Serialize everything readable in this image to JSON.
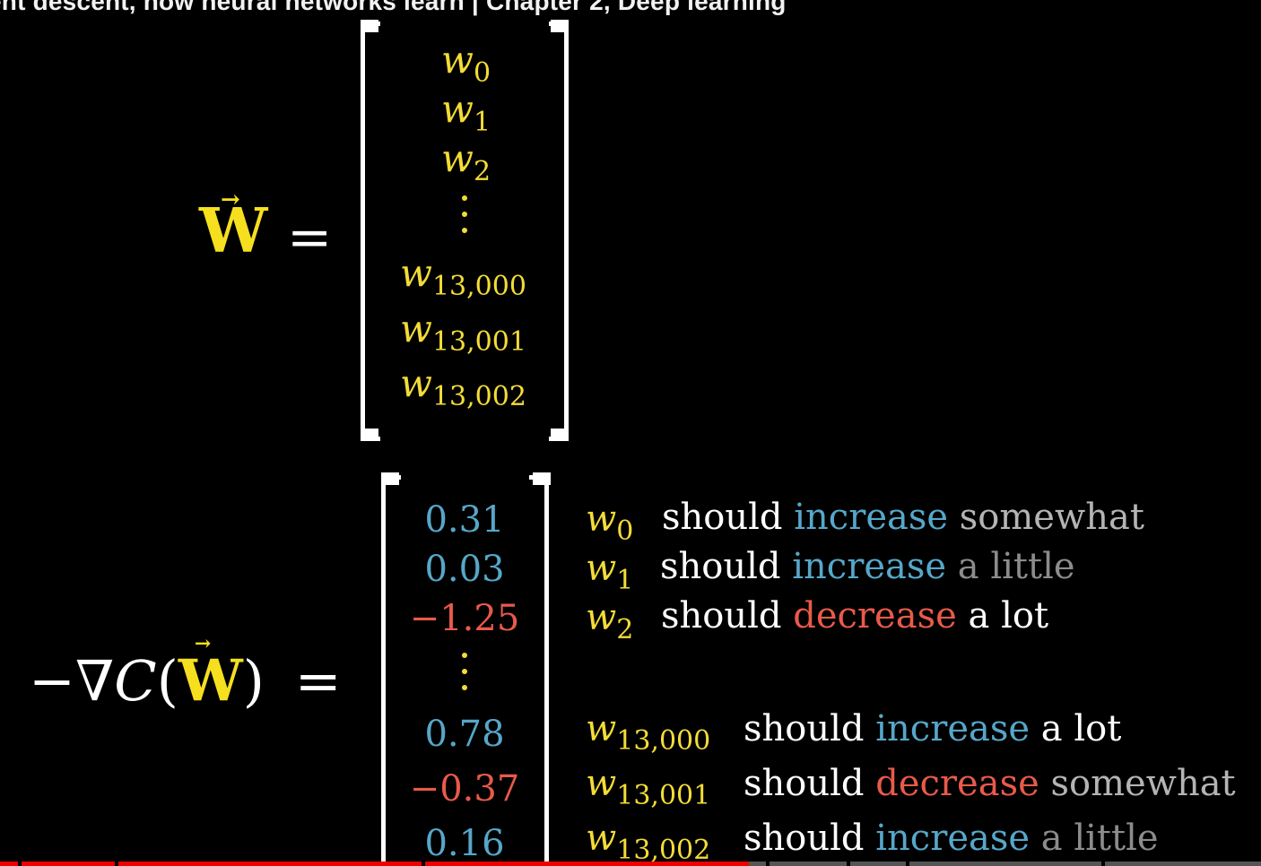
{
  "video": {
    "title": "ent descent, how neural networks learn | Chapter 2, Deep learning",
    "progress_fraction": 0.594
  },
  "weights": {
    "symbol": "W",
    "arrow": "→",
    "equals": "=",
    "entries": [
      {
        "base": "w",
        "sub": "0"
      },
      {
        "base": "w",
        "sub": "1"
      },
      {
        "base": "w",
        "sub": "2"
      },
      {
        "base": "w",
        "sub": "13,000"
      },
      {
        "base": "w",
        "sub": "13,001"
      },
      {
        "base": "w",
        "sub": "13,002"
      }
    ],
    "ellipsis": "⋮"
  },
  "gradient": {
    "minus": "−",
    "nabla": "∇",
    "c": "C",
    "open": "(",
    "w": "W",
    "close": ")",
    "equals": "=",
    "values": [
      {
        "text": "0.31",
        "color": "blue"
      },
      {
        "text": "0.03",
        "color": "blue"
      },
      {
        "text": "−1.25",
        "color": "red"
      },
      {
        "text": "0.78",
        "color": "blue"
      },
      {
        "text": "−0.37",
        "color": "red"
      },
      {
        "text": "0.16",
        "color": "blue"
      }
    ],
    "ellipsis": "⋮"
  },
  "annotations": [
    {
      "w_base": "w",
      "w_sub": "0",
      "should": "should",
      "direction": "increase",
      "amount": "somewhat"
    },
    {
      "w_base": "w",
      "w_sub": "1",
      "should": "should",
      "direction": "increase",
      "amount": "a little"
    },
    {
      "w_base": "w",
      "w_sub": "2",
      "should": "should",
      "direction": "decrease",
      "amount": "a lot"
    },
    {
      "w_base": "w",
      "w_sub": "13,000",
      "should": "should",
      "direction": "increase",
      "amount": "a lot"
    },
    {
      "w_base": "w",
      "w_sub": "13,001",
      "should": "should",
      "direction": "decrease",
      "amount": "somewhat"
    },
    {
      "w_base": "w",
      "w_sub": "13,002",
      "should": "should",
      "direction": "increase",
      "amount": "a little"
    }
  ],
  "colors": {
    "yellow": "#f3dc37",
    "blue": "#56a7c9",
    "red": "#e85a4a",
    "progress": "#ee0000"
  }
}
